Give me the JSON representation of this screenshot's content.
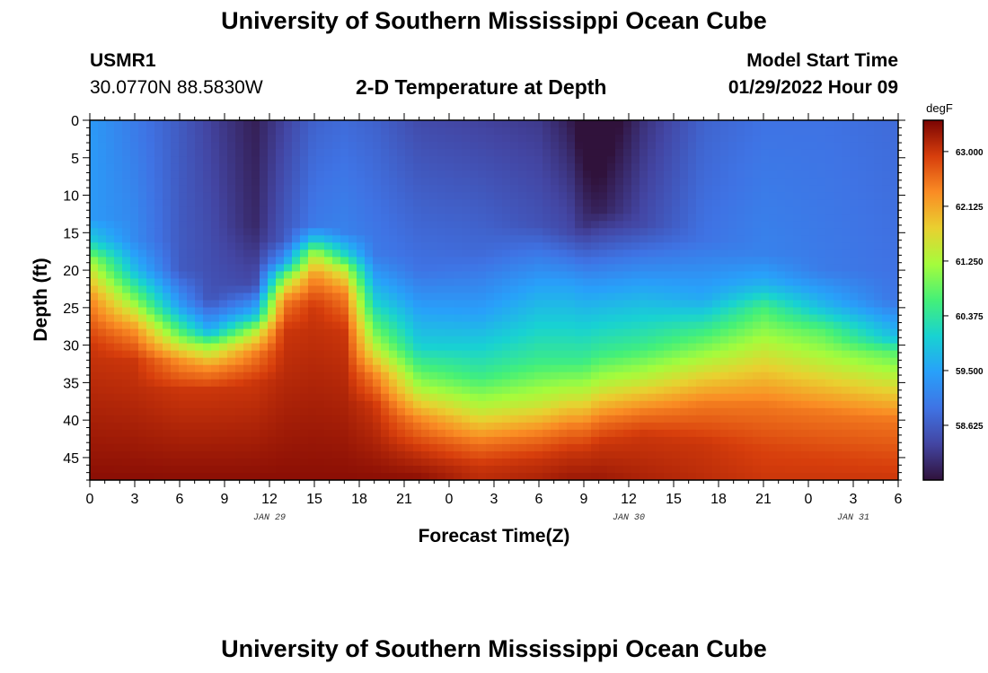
{
  "header": {
    "title": "University of Southern Mississippi Ocean Cube",
    "station": "USMR1",
    "coordinates": "30.0770N  88.5830W",
    "plot_title": "2-D Temperature at Depth",
    "model_start_label": "Model Start Time",
    "model_start_value": "01/29/2022 Hour 09"
  },
  "footer": {
    "title": "University of Southern Mississippi Ocean Cube"
  },
  "chart_data": {
    "type": "heatmap",
    "title": "2-D Temperature at Depth",
    "xlabel": "Forecast Time(Z)",
    "ylabel": "Depth (ft)",
    "x_tick_labels": [
      "0",
      "3",
      "6",
      "9",
      "12",
      "15",
      "18",
      "21",
      "0",
      "3",
      "6",
      "9",
      "12",
      "15",
      "18",
      "21",
      "0",
      "3",
      "6"
    ],
    "x_range_hours": [
      0,
      54
    ],
    "date_labels": [
      {
        "label": "JAN 29",
        "hour": 12
      },
      {
        "label": "JAN 30",
        "hour": 36
      },
      {
        "label": "JAN 31",
        "hour": 51
      }
    ],
    "y_ticks": [
      0,
      5,
      10,
      15,
      20,
      25,
      30,
      35,
      40,
      45
    ],
    "y_range": [
      0,
      48
    ],
    "colorbar": {
      "unit": "degF",
      "min": 57.75,
      "max": 63.5,
      "ticks": [
        63.0,
        62.125,
        61.25,
        60.375,
        59.5,
        58.625
      ],
      "tick_labels": [
        "63.000",
        "62.125",
        "61.250",
        "60.375",
        "59.500",
        "58.625"
      ]
    },
    "series": [
      {
        "hour": 0,
        "profile": [
          [
            0,
            59.4
          ],
          [
            13,
            59.4
          ],
          [
            16,
            60.0
          ],
          [
            19,
            61.3
          ],
          [
            24,
            62.4
          ],
          [
            30,
            63.0
          ],
          [
            48,
            63.4
          ]
        ]
      },
      {
        "hour": 3,
        "profile": [
          [
            0,
            59.0
          ],
          [
            16,
            59.2
          ],
          [
            20,
            59.8
          ],
          [
            24,
            61.0
          ],
          [
            28,
            62.3
          ],
          [
            32,
            63.0
          ],
          [
            48,
            63.4
          ]
        ]
      },
      {
        "hour": 6,
        "profile": [
          [
            0,
            58.6
          ],
          [
            20,
            58.6
          ],
          [
            25,
            59.5
          ],
          [
            29,
            61.0
          ],
          [
            32,
            62.3
          ],
          [
            36,
            63.0
          ],
          [
            48,
            63.4
          ]
        ]
      },
      {
        "hour": 8,
        "profile": [
          [
            0,
            58.3
          ],
          [
            24,
            58.5
          ],
          [
            28,
            59.6
          ],
          [
            30,
            61.0
          ],
          [
            33,
            62.3
          ],
          [
            36,
            63.0
          ],
          [
            48,
            63.4
          ]
        ]
      },
      {
        "hour": 11,
        "profile": [
          [
            0,
            57.9
          ],
          [
            14,
            58.0
          ],
          [
            22,
            58.4
          ],
          [
            26,
            59.8
          ],
          [
            28,
            61.2
          ],
          [
            31,
            62.4
          ],
          [
            35,
            63.0
          ],
          [
            48,
            63.4
          ]
        ]
      },
      {
        "hour": 13,
        "profile": [
          [
            0,
            58.3
          ],
          [
            16,
            58.6
          ],
          [
            19,
            59.5
          ],
          [
            21,
            61.0
          ],
          [
            24,
            62.4
          ],
          [
            28,
            63.0
          ],
          [
            48,
            63.4
          ]
        ]
      },
      {
        "hour": 15,
        "profile": [
          [
            0,
            58.7
          ],
          [
            14,
            59.0
          ],
          [
            16,
            60.0
          ],
          [
            18,
            61.4
          ],
          [
            21,
            62.4
          ],
          [
            25,
            63.0
          ],
          [
            48,
            63.4
          ]
        ]
      },
      {
        "hour": 17,
        "profile": [
          [
            0,
            58.8
          ],
          [
            15,
            59.1
          ],
          [
            18,
            60.2
          ],
          [
            20,
            61.4
          ],
          [
            23,
            62.4
          ],
          [
            28,
            63.0
          ],
          [
            48,
            63.4
          ]
        ]
      },
      {
        "hour": 19,
        "profile": [
          [
            0,
            58.7
          ],
          [
            18,
            59.0
          ],
          [
            24,
            60.0
          ],
          [
            30,
            61.3
          ],
          [
            34,
            62.4
          ],
          [
            38,
            63.0
          ],
          [
            48,
            63.4
          ]
        ]
      },
      {
        "hour": 22,
        "profile": [
          [
            0,
            58.4
          ],
          [
            20,
            58.9
          ],
          [
            30,
            60.0
          ],
          [
            36,
            61.3
          ],
          [
            40,
            62.4
          ],
          [
            44,
            63.0
          ],
          [
            48,
            63.4
          ]
        ]
      },
      {
        "hour": 26,
        "profile": [
          [
            0,
            58.3
          ],
          [
            18,
            58.8
          ],
          [
            26,
            59.5
          ],
          [
            34,
            60.5
          ],
          [
            39,
            61.5
          ],
          [
            43,
            62.5
          ],
          [
            46,
            63.0
          ],
          [
            48,
            63.1
          ]
        ]
      },
      {
        "hour": 30,
        "profile": [
          [
            0,
            58.2
          ],
          [
            14,
            58.5
          ],
          [
            22,
            59.5
          ],
          [
            32,
            60.5
          ],
          [
            38,
            61.5
          ],
          [
            42,
            62.5
          ],
          [
            45,
            63.0
          ],
          [
            48,
            63.2
          ]
        ]
      },
      {
        "hour": 32,
        "profile": [
          [
            0,
            57.9
          ],
          [
            15,
            58.4
          ],
          [
            22,
            59.5
          ],
          [
            32,
            60.5
          ],
          [
            37,
            61.5
          ],
          [
            41,
            62.5
          ],
          [
            44,
            63.0
          ],
          [
            48,
            63.3
          ]
        ]
      },
      {
        "hour": 33,
        "profile": [
          [
            0,
            57.5
          ],
          [
            14,
            58.1
          ],
          [
            22,
            59.4
          ],
          [
            32,
            60.5
          ],
          [
            37,
            61.5
          ],
          [
            41,
            62.5
          ],
          [
            44,
            63.0
          ],
          [
            48,
            63.3
          ]
        ]
      },
      {
        "hour": 34,
        "profile": [
          [
            0,
            57.4
          ],
          [
            12,
            57.9
          ],
          [
            22,
            59.4
          ],
          [
            31,
            60.5
          ],
          [
            36,
            61.5
          ],
          [
            40,
            62.5
          ],
          [
            43,
            63.0
          ],
          [
            48,
            63.3
          ]
        ]
      },
      {
        "hour": 37,
        "profile": [
          [
            0,
            58.1
          ],
          [
            14,
            58.4
          ],
          [
            22,
            59.5
          ],
          [
            30,
            60.5
          ],
          [
            35,
            61.5
          ],
          [
            39,
            62.5
          ],
          [
            42,
            63.0
          ],
          [
            48,
            63.2
          ]
        ]
      },
      {
        "hour": 41,
        "profile": [
          [
            0,
            58.7
          ],
          [
            16,
            58.9
          ],
          [
            24,
            59.6
          ],
          [
            28,
            60.5
          ],
          [
            33,
            61.5
          ],
          [
            38,
            62.5
          ],
          [
            43,
            63.0
          ],
          [
            48,
            63.1
          ]
        ]
      },
      {
        "hour": 45,
        "profile": [
          [
            0,
            58.9
          ],
          [
            18,
            59.1
          ],
          [
            22,
            59.7
          ],
          [
            25,
            60.6
          ],
          [
            31,
            61.5
          ],
          [
            38,
            62.5
          ],
          [
            44,
            62.9
          ],
          [
            48,
            63.0
          ]
        ]
      },
      {
        "hour": 49,
        "profile": [
          [
            0,
            58.9
          ],
          [
            20,
            59.0
          ],
          [
            25,
            59.8
          ],
          [
            28,
            60.7
          ],
          [
            33,
            61.5
          ],
          [
            39,
            62.5
          ],
          [
            45,
            62.9
          ],
          [
            48,
            63.0
          ]
        ]
      },
      {
        "hour": 54,
        "profile": [
          [
            0,
            58.8
          ],
          [
            24,
            58.9
          ],
          [
            29,
            59.8
          ],
          [
            31,
            60.7
          ],
          [
            35,
            61.5
          ],
          [
            40,
            62.5
          ],
          [
            46,
            62.9
          ],
          [
            48,
            63.0
          ]
        ]
      }
    ]
  }
}
